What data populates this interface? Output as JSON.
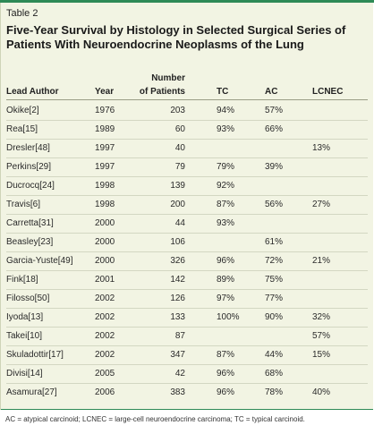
{
  "table_label": "Table 2",
  "title": "Five-Year Survival by Histology in Selected Surgical Series of Patients With Neuroendocrine Neoplasms of the Lung",
  "columns": {
    "author": "Lead Author",
    "year": "Year",
    "patients_line1": "Number",
    "patients_line2": "of Patients",
    "tc": "TC",
    "ac": "AC",
    "lcnec": "LCNEC"
  },
  "rows": [
    {
      "author": "Okike[2]",
      "year": "1976",
      "patients": "203",
      "tc": "94%",
      "ac": "57%",
      "lcnec": ""
    },
    {
      "author": "Rea[15]",
      "year": "1989",
      "patients": "60",
      "tc": "93%",
      "ac": "66%",
      "lcnec": ""
    },
    {
      "author": "Dresler[48]",
      "year": "1997",
      "patients": "40",
      "tc": "",
      "ac": "",
      "lcnec": "13%"
    },
    {
      "author": "Perkins[29]",
      "year": "1997",
      "patients": "79",
      "tc": "79%",
      "ac": "39%",
      "lcnec": ""
    },
    {
      "author": "Ducrocq[24]",
      "year": "1998",
      "patients": "139",
      "tc": "92%",
      "ac": "",
      "lcnec": ""
    },
    {
      "author": "Travis[6]",
      "year": "1998",
      "patients": "200",
      "tc": "87%",
      "ac": "56%",
      "lcnec": "27%"
    },
    {
      "author": "Carretta[31]",
      "year": "2000",
      "patients": "44",
      "tc": "93%",
      "ac": "",
      "lcnec": ""
    },
    {
      "author": "Beasley[23]",
      "year": "2000",
      "patients": "106",
      "tc": "",
      "ac": "61%",
      "lcnec": ""
    },
    {
      "author": "Garcia-Yuste[49]",
      "year": "2000",
      "patients": "326",
      "tc": "96%",
      "ac": "72%",
      "lcnec": "21%"
    },
    {
      "author": "Fink[18]",
      "year": "2001",
      "patients": "142",
      "tc": "89%",
      "ac": "75%",
      "lcnec": ""
    },
    {
      "author": "Filosso[50]",
      "year": "2002",
      "patients": "126",
      "tc": "97%",
      "ac": "77%",
      "lcnec": ""
    },
    {
      "author": "Iyoda[13]",
      "year": "2002",
      "patients": "133",
      "tc": "100%",
      "ac": "90%",
      "lcnec": "32%"
    },
    {
      "author": "Takei[10]",
      "year": "2002",
      "patients": "87",
      "tc": "",
      "ac": "",
      "lcnec": "57%"
    },
    {
      "author": "Skuladottir[17]",
      "year": "2002",
      "patients": "347",
      "tc": "87%",
      "ac": "44%",
      "lcnec": "15%"
    },
    {
      "author": "Divisi[14]",
      "year": "2005",
      "patients": "42",
      "tc": "96%",
      "ac": "68%",
      "lcnec": ""
    },
    {
      "author": "Asamura[27]",
      "year": "2006",
      "patients": "383",
      "tc": "96%",
      "ac": "78%",
      "lcnec": "40%"
    }
  ],
  "footnote": "AC = atypical carcinoid; LCNEC = large-cell neuroendocrine carcinoma; TC = typical carcinoid.",
  "colors": {
    "accent_rule": "#2e8a56",
    "panel_background": "#f2f4e3"
  }
}
